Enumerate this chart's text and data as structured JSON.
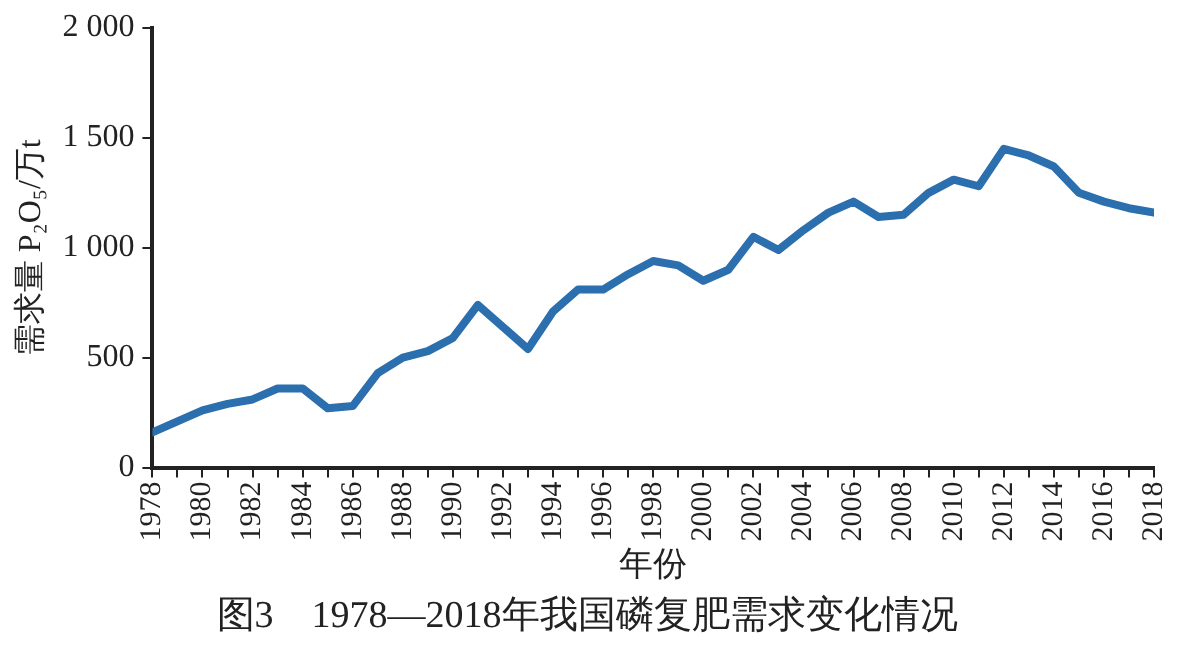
{
  "chart_data": {
    "type": "line",
    "title": "图3　1978—2018年我国磷复肥需求变化情况",
    "xlabel": "年份",
    "ylabel": "需求量 P₂O₅/万t",
    "x": [
      1978,
      1979,
      1980,
      1981,
      1982,
      1983,
      1984,
      1985,
      1986,
      1987,
      1988,
      1989,
      1990,
      1991,
      1992,
      1993,
      1994,
      1995,
      1996,
      1997,
      1998,
      1999,
      2000,
      2001,
      2002,
      2003,
      2004,
      2005,
      2006,
      2007,
      2008,
      2009,
      2010,
      2011,
      2012,
      2013,
      2014,
      2015,
      2016,
      2017,
      2018
    ],
    "series": [
      {
        "color": "#2b6fae",
        "values": [
          160,
          210,
          260,
          290,
          310,
          360,
          360,
          270,
          280,
          430,
          500,
          530,
          590,
          740,
          640,
          540,
          710,
          810,
          810,
          880,
          940,
          920,
          850,
          900,
          1050,
          990,
          1080,
          1160,
          1210,
          1140,
          1150,
          1250,
          1310,
          1280,
          1450,
          1420,
          1370,
          1250,
          1210,
          1180,
          1160
        ]
      }
    ],
    "xlim": [
      1978,
      2018
    ],
    "xticks": [
      1978,
      {
        "value": 1979,
        "label": null
      },
      1980,
      {
        "value": 1981,
        "label": null
      },
      1982,
      {
        "value": 1983,
        "label": null
      },
      1984,
      {
        "value": 1985,
        "label": null
      },
      1986,
      {
        "value": 1987,
        "label": null
      },
      1988,
      {
        "value": 1989,
        "label": null
      },
      1990,
      {
        "value": 1991,
        "label": null
      },
      1992,
      {
        "value": 1993,
        "label": null
      },
      1994,
      {
        "value": 1995,
        "label": null
      },
      1996,
      {
        "value": 1997,
        "label": null
      },
      1998,
      {
        "value": 1999,
        "label": null
      },
      2000,
      {
        "value": 2001,
        "label": null
      },
      2002,
      {
        "value": 2003,
        "label": null
      },
      2004,
      {
        "value": 2005,
        "label": null
      },
      2006,
      {
        "value": 2007,
        "label": null
      },
      2008,
      {
        "value": 2009,
        "label": null
      },
      2010,
      {
        "value": 2011,
        "label": null
      },
      2012,
      {
        "value": 2013,
        "label": null
      },
      2014,
      {
        "value": 2015,
        "label": null
      },
      2016,
      {
        "value": 2017,
        "label": null
      },
      2018
    ],
    "ylim": [
      0,
      2000
    ],
    "yticks": [
      0,
      500,
      {
        "value": 1000,
        "label": "1 000"
      },
      {
        "value": 1500,
        "label": "1 500"
      },
      {
        "value": 2000,
        "label": "2 000"
      }
    ],
    "grid": false,
    "legend": false,
    "marker": "none",
    "line_style": "solid"
  }
}
